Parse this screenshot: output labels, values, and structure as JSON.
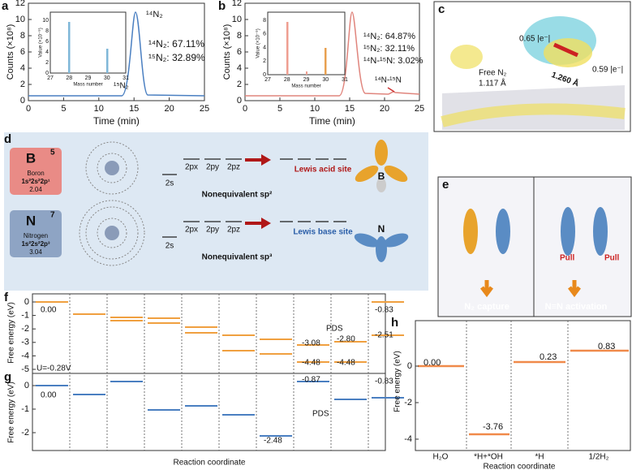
{
  "a": {
    "label": "a",
    "x_label": "Time (min)",
    "y_label": "Counts (×10⁸)",
    "xticks": [
      "0",
      "5",
      "10",
      "15",
      "20",
      "25"
    ],
    "yticks": [
      "0",
      "2",
      "4",
      "6",
      "8",
      "10",
      "12"
    ],
    "peak": "¹⁴N₂",
    "small_peak": "¹⁵N₂",
    "ratios": [
      "¹⁴N₂: 67.11%",
      "¹⁵N₂: 32.89%"
    ],
    "inset": {
      "x_label": "Mass number",
      "y_label": "Value (×10⁻⁹)",
      "xticks": [
        "27",
        "28",
        "29",
        "30",
        "31"
      ],
      "yticks": [
        "0",
        "2",
        "4",
        "6",
        "8",
        "10"
      ]
    }
  },
  "b": {
    "label": "b",
    "x_label": "Time (min)",
    "y_label": "Counts (×10⁸)",
    "xticks": [
      "0",
      "5",
      "10",
      "15",
      "20",
      "25"
    ],
    "yticks": [
      "0",
      "2",
      "4",
      "6",
      "8",
      "10",
      "12"
    ],
    "peak": "¹⁴N₂",
    "small_peak": "¹⁴N-¹⁵N",
    "ratios": [
      "¹⁴N₂: 64.87%",
      "¹⁵N₂: 32.11%",
      "¹⁴N-¹⁵N: 3.02%"
    ],
    "inset": {
      "x_label": "Mass number",
      "y_label": "Value (×10⁻⁹)",
      "xticks": [
        "27",
        "28",
        "29",
        "30",
        "31"
      ],
      "yticks": [
        "0",
        "2",
        "4",
        "6",
        "8"
      ]
    }
  },
  "c": {
    "label": "c",
    "charge1": "0.65 |e⁻|",
    "charge2": "0.59 |e⁻|",
    "bond": "1.260 Å",
    "free": "Free N₂",
    "free_len": "1.117 Å"
  },
  "d": {
    "label": "d",
    "boron": {
      "symbol": "B",
      "number": "5",
      "name": "Boron",
      "config": "1s²2s²2p¹",
      "en": "2.04",
      "hyb": "Nonequivalent sp²",
      "site": "Lewis acid site"
    },
    "nitrogen": {
      "symbol": "N",
      "number": "7",
      "name": "Nitrogen",
      "config": "1s²2s²2p³",
      "en": "3.04",
      "hyb": "Nonequivalent sp³",
      "site": "Lewis base site"
    },
    "orbitals": [
      "2s",
      "2px",
      "2py",
      "2pz"
    ]
  },
  "e": {
    "label": "e",
    "pull": "Pull",
    "left": "N₂ capture",
    "right": "N≡N activation"
  },
  "f": {
    "label": "f",
    "y_label": "Free energy (eV)",
    "yticks": [
      "0",
      "-1",
      "-2",
      "-3",
      "-4",
      "-5"
    ],
    "u": "U=-0.28V",
    "pds": "PDS",
    "levels": [
      "0.00",
      "-3.08",
      "-2.80",
      "-4.48",
      "-4.48",
      "-0.83",
      "-2.51"
    ]
  },
  "g": {
    "label": "g",
    "y_label": "Free energy (eV)",
    "yticks": [
      "0",
      "-1",
      "-2"
    ],
    "pds": "PDS",
    "levels": [
      "0.00",
      "-0.87",
      "-2.48",
      "-0.83"
    ],
    "x_label": "Reaction coordinate"
  },
  "h": {
    "label": "h",
    "y_label": "Free energy (eV)",
    "yticks": [
      "0",
      "-2",
      "-4"
    ],
    "levels": [
      "0.00",
      "-3.76",
      "0.23",
      "0.83"
    ],
    "categories": [
      "H₂O",
      "*H+*OH",
      "*H",
      "1/2H₂"
    ],
    "x_label": "Reaction coordinate"
  }
}
